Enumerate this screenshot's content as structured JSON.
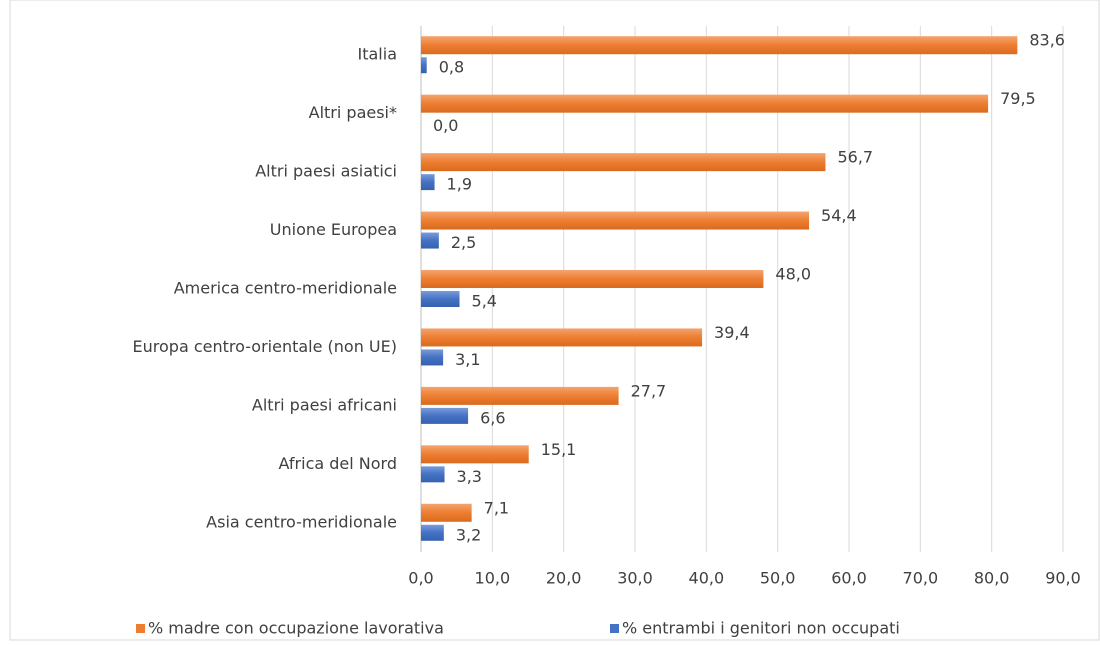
{
  "chart_data": {
    "type": "bar",
    "orientation": "horizontal",
    "categories": [
      "Italia",
      "Altri paesi*",
      "Altri paesi asiatici",
      "Unione Europea",
      "America centro-meridionale",
      "Europa centro-orientale (non UE)",
      "Altri paesi africani",
      "Africa del Nord",
      "Asia centro-meridionale"
    ],
    "series": [
      {
        "name": "% madre con occupazione lavorativa",
        "color": "#ED7D31",
        "values": [
          83.6,
          79.5,
          56.7,
          54.4,
          48.0,
          39.4,
          27.7,
          15.1,
          7.1
        ],
        "value_labels": [
          "83,6",
          "79,5",
          "56,7",
          "54,4",
          "48,0",
          "39,4",
          "27,7",
          "15,1",
          "7,1"
        ]
      },
      {
        "name": "% entrambi i genitori non occupati",
        "color": "#4472C4",
        "values": [
          0.8,
          0.0,
          1.9,
          2.5,
          5.4,
          3.1,
          6.6,
          3.3,
          3.2
        ],
        "value_labels": [
          "0,8",
          "0,0",
          "1,9",
          "2,5",
          "5,4",
          "3,1",
          "6,6",
          "3,3",
          "3,2"
        ]
      }
    ],
    "xlim": [
      0,
      90
    ],
    "xticks": [
      {
        "value": 0,
        "label": "0,0"
      },
      {
        "value": 10,
        "label": "10,0"
      },
      {
        "value": 20,
        "label": "20,0"
      },
      {
        "value": 30,
        "label": "30,0"
      },
      {
        "value": 40,
        "label": "40,0"
      },
      {
        "value": 50,
        "label": "50,0"
      },
      {
        "value": 60,
        "label": "60,0"
      },
      {
        "value": 70,
        "label": "70,0"
      },
      {
        "value": 80,
        "label": "80,0"
      },
      {
        "value": 90,
        "label": "90,0"
      }
    ],
    "grid": true,
    "legend": "bottom"
  }
}
